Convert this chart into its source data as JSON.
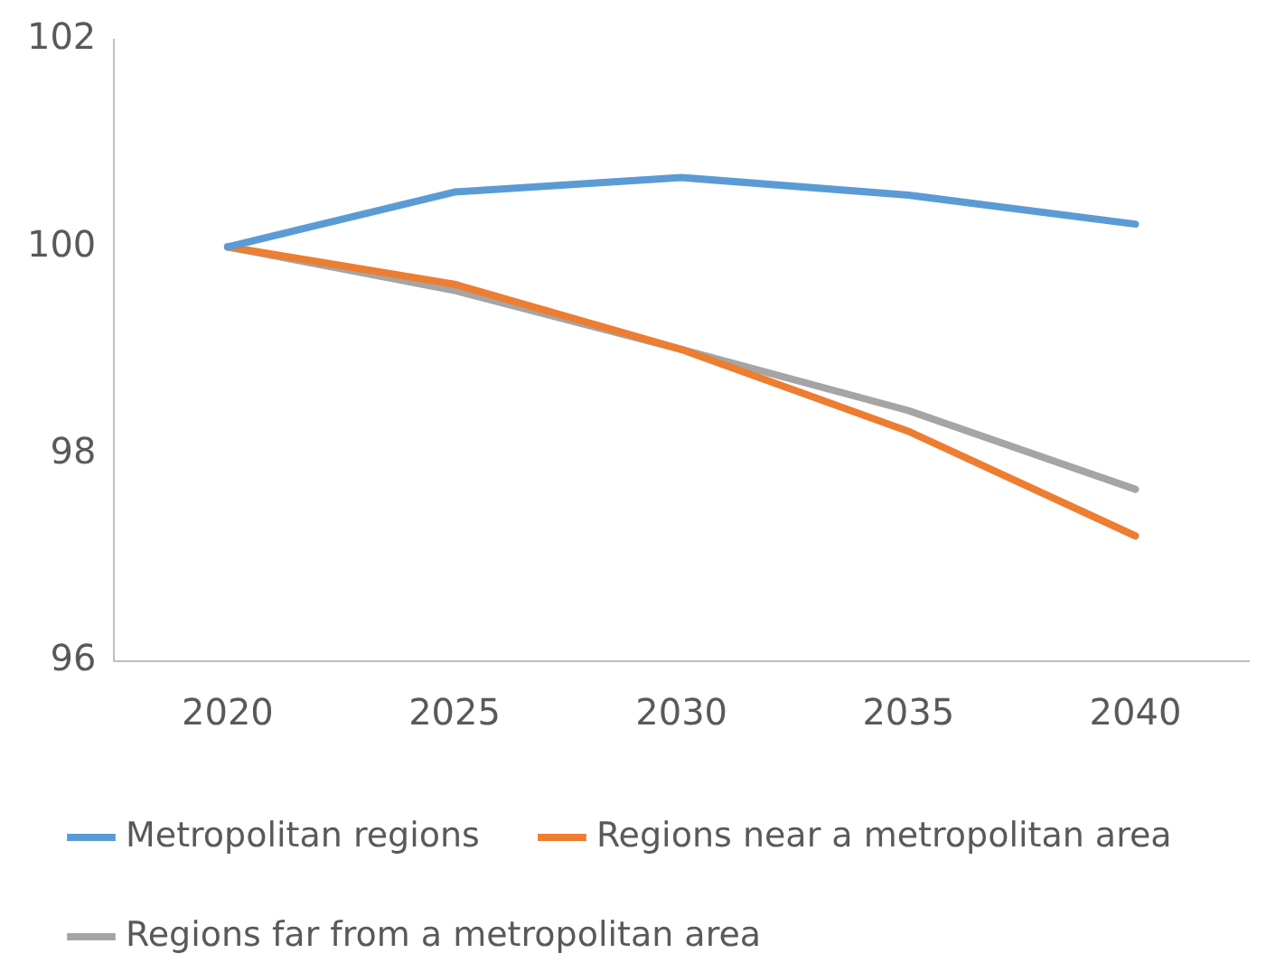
{
  "chart_data": {
    "type": "line",
    "categories": [
      "2020",
      "2025",
      "2030",
      "2035",
      "2040"
    ],
    "series": [
      {
        "name": "Metropolitan regions",
        "color": "#5b9bd5",
        "values": [
          100,
          100.53,
          100.67,
          100.5,
          100.22
        ]
      },
      {
        "name": "Regions near a metropolitan area",
        "color": "#ed7d31",
        "values": [
          100,
          99.64,
          99.01,
          98.22,
          97.21
        ]
      },
      {
        "name": "Regions far from a metropolitan area",
        "color": "#a5a5a5",
        "values": [
          100,
          99.58,
          99.01,
          98.42,
          97.66
        ]
      }
    ],
    "ylim": [
      96,
      102
    ],
    "yticks": [
      96,
      98,
      100,
      102
    ],
    "grid": false,
    "legend": "bottom",
    "marker": "none",
    "line_style": "solid"
  }
}
